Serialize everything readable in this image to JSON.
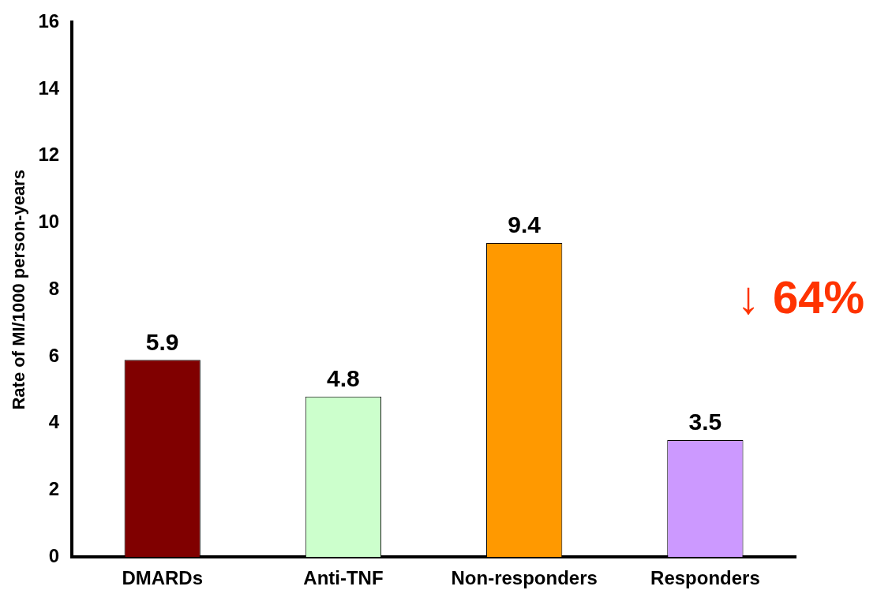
{
  "chart_data": {
    "type": "bar",
    "ylabel": "Rate of MI/1000 person-years",
    "categories": [
      "DMARDs",
      "Anti-TNF",
      "Non-responders",
      "Responders"
    ],
    "values": [
      5.9,
      4.8,
      9.4,
      3.5
    ],
    "colors": [
      "#800000",
      "#ccffcc",
      "#ff9900",
      "#cc99ff"
    ],
    "ylim": [
      0,
      16
    ],
    "yticks": [
      0,
      2,
      4,
      6,
      8,
      10,
      12,
      14,
      16
    ],
    "grid": false,
    "legend": false,
    "data_labels": true,
    "annotations": [
      "↓ 64%"
    ]
  }
}
